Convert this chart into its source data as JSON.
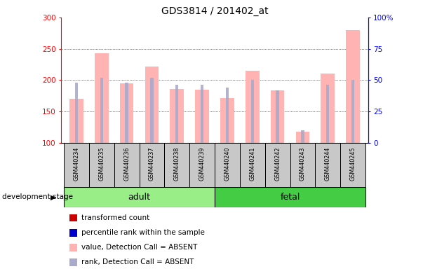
{
  "title": "GDS3814 / 201402_at",
  "samples": [
    "GSM440234",
    "GSM440235",
    "GSM440236",
    "GSM440237",
    "GSM440238",
    "GSM440239",
    "GSM440240",
    "GSM440241",
    "GSM440242",
    "GSM440243",
    "GSM440244",
    "GSM440245"
  ],
  "transformed_count": [
    170,
    243,
    195,
    222,
    186,
    185,
    171,
    215,
    183,
    117,
    210,
    280
  ],
  "percentile_rank": [
    48,
    52,
    48,
    52,
    46,
    46,
    44,
    50,
    42,
    10,
    46,
    50
  ],
  "ylim_left": [
    100,
    300
  ],
  "ylim_right": [
    0,
    100
  ],
  "yticks_left": [
    100,
    150,
    200,
    250,
    300
  ],
  "ytick_labels_left": [
    "100",
    "150",
    "200",
    "250",
    "300"
  ],
  "yticks_right": [
    0,
    25,
    50,
    75,
    100
  ],
  "ytick_labels_right": [
    "0",
    "25",
    "50",
    "75",
    "100%"
  ],
  "adult_indices": [
    0,
    1,
    2,
    3,
    4,
    5
  ],
  "fetal_indices": [
    6,
    7,
    8,
    9,
    10,
    11
  ],
  "adult_label": "adult",
  "fetal_label": "fetal",
  "dev_stage_label": "development stage",
  "color_pink_bar": "#FFB3B3",
  "color_blue_bar": "#AAAACC",
  "color_adult_bg": "#99EE88",
  "color_fetal_bg": "#44CC44",
  "color_sample_bg": "#C8C8C8",
  "legend_items": [
    {
      "color": "#CC0000",
      "label": "transformed count"
    },
    {
      "color": "#0000CC",
      "label": "percentile rank within the sample"
    },
    {
      "color": "#FFB3B3",
      "label": "value, Detection Call = ABSENT"
    },
    {
      "color": "#AAAACC",
      "label": "rank, Detection Call = ABSENT"
    }
  ]
}
